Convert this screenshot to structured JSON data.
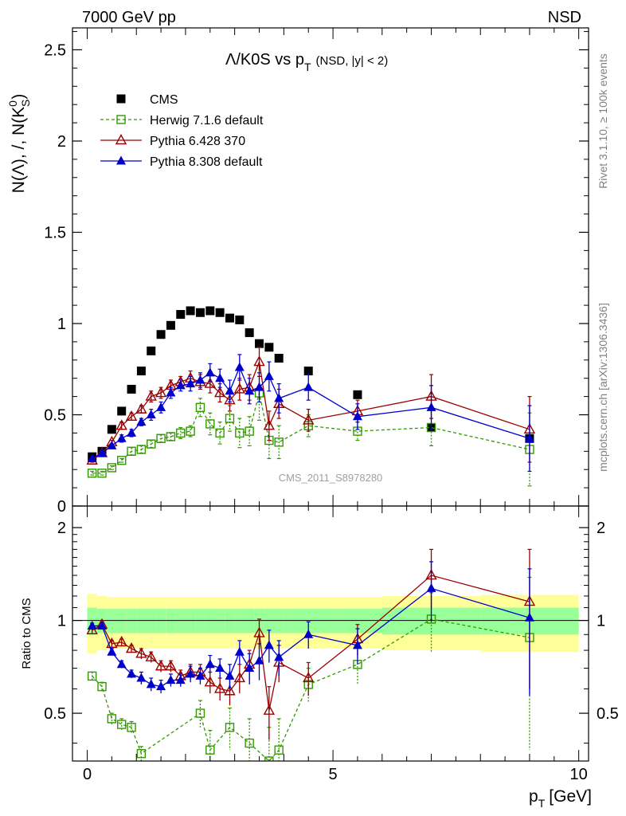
{
  "header": {
    "left": "7000 GeV pp",
    "right": "NSD"
  },
  "side_text": {
    "rivet": "Rivet 3.1.10, ≥ 100k events",
    "mcplots": "mcplots.cern.ch [arXiv:1306.3436]"
  },
  "watermark": "CMS_2011_S8978280",
  "chart_data": [
    {
      "type": "scatter",
      "panel": "main",
      "title": "Λ/K0S vs p_T (NSD, |y| < 2)",
      "title_main": "Λ/K0S vs p",
      "title_sub": "T",
      "title_tail": "(NSD, |y| < 2)",
      "ylabel": "N(Λ), /, N(K_S^0)",
      "xlim": [
        -0.3,
        10.2
      ],
      "ylim": [
        0,
        2.62
      ],
      "y_ticks": [
        0,
        0.5,
        1,
        1.5,
        2,
        2.5
      ],
      "y_tick_labels": [
        "0",
        "0.5",
        "1",
        "1.5",
        "2",
        "2.5"
      ],
      "legend_position": "top-left",
      "series": [
        {
          "name": "CMS",
          "style": "filled-square",
          "color": "#000000",
          "x": [
            0.1,
            0.3,
            0.5,
            0.7,
            0.9,
            1.1,
            1.3,
            1.5,
            1.7,
            1.9,
            2.1,
            2.3,
            2.5,
            2.7,
            2.9,
            3.1,
            3.3,
            3.5,
            3.7,
            3.9,
            4.5,
            5.5,
            7.0,
            9.0
          ],
          "y": [
            0.27,
            0.3,
            0.42,
            0.52,
            0.64,
            0.74,
            0.85,
            0.94,
            0.99,
            1.05,
            1.07,
            1.06,
            1.07,
            1.06,
            1.03,
            1.02,
            0.95,
            0.89,
            0.87,
            0.81,
            0.74,
            0.61,
            0.43,
            0.37
          ]
        },
        {
          "name": "Herwig 7.1.6 default",
          "style": "open-square-dashed",
          "color": "#339900",
          "x": [
            0.1,
            0.3,
            0.5,
            0.7,
            0.9,
            1.1,
            1.3,
            1.5,
            1.7,
            1.9,
            2.1,
            2.3,
            2.5,
            2.7,
            2.9,
            3.1,
            3.3,
            3.5,
            3.7,
            3.9,
            4.5,
            5.5,
            7.0,
            9.0
          ],
          "y": [
            0.18,
            0.18,
            0.21,
            0.25,
            0.3,
            0.31,
            0.34,
            0.37,
            0.38,
            0.4,
            0.41,
            0.54,
            0.45,
            0.4,
            0.48,
            0.4,
            0.41,
            0.62,
            0.36,
            0.35,
            0.44,
            0.41,
            0.43,
            0.31
          ],
          "err": [
            0.01,
            0.01,
            0.01,
            0.01,
            0.02,
            0.02,
            0.02,
            0.02,
            0.02,
            0.03,
            0.03,
            0.05,
            0.06,
            0.06,
            0.07,
            0.08,
            0.08,
            0.15,
            0.1,
            0.09,
            0.06,
            0.05,
            0.1,
            0.2
          ]
        },
        {
          "name": "Pythia 6.428 370",
          "style": "open-triangle",
          "color": "#990000",
          "x": [
            0.1,
            0.3,
            0.5,
            0.7,
            0.9,
            1.1,
            1.3,
            1.5,
            1.7,
            1.9,
            2.1,
            2.3,
            2.5,
            2.7,
            2.9,
            3.1,
            3.3,
            3.5,
            3.7,
            3.9,
            4.5,
            5.5,
            7.0,
            9.0
          ],
          "y": [
            0.25,
            0.29,
            0.35,
            0.44,
            0.49,
            0.53,
            0.6,
            0.62,
            0.66,
            0.68,
            0.7,
            0.68,
            0.67,
            0.62,
            0.58,
            0.64,
            0.65,
            0.79,
            0.44,
            0.56,
            0.47,
            0.52,
            0.6,
            0.42
          ],
          "err": [
            0.01,
            0.01,
            0.01,
            0.02,
            0.02,
            0.02,
            0.03,
            0.03,
            0.03,
            0.03,
            0.04,
            0.04,
            0.05,
            0.05,
            0.06,
            0.06,
            0.07,
            0.08,
            0.08,
            0.08,
            0.06,
            0.06,
            0.12,
            0.18
          ]
        },
        {
          "name": "Pythia 8.308 default",
          "style": "filled-triangle",
          "color": "#0000cc",
          "x": [
            0.1,
            0.3,
            0.5,
            0.7,
            0.9,
            1.1,
            1.3,
            1.5,
            1.7,
            1.9,
            2.1,
            2.3,
            2.5,
            2.7,
            2.9,
            3.1,
            3.3,
            3.5,
            3.7,
            3.9,
            4.5,
            5.5,
            7.0,
            9.0
          ],
          "y": [
            0.26,
            0.29,
            0.33,
            0.37,
            0.4,
            0.46,
            0.5,
            0.54,
            0.62,
            0.66,
            0.67,
            0.69,
            0.73,
            0.7,
            0.63,
            0.76,
            0.63,
            0.65,
            0.71,
            0.59,
            0.65,
            0.49,
            0.54,
            0.37
          ],
          "err": [
            0.01,
            0.01,
            0.01,
            0.02,
            0.02,
            0.02,
            0.03,
            0.03,
            0.03,
            0.03,
            0.04,
            0.04,
            0.05,
            0.05,
            0.06,
            0.07,
            0.07,
            0.08,
            0.08,
            0.08,
            0.07,
            0.07,
            0.12,
            0.18
          ]
        }
      ]
    },
    {
      "type": "line",
      "panel": "ratio",
      "ylabel": "Ratio to CMS",
      "xlabel": "p_T [GeV]",
      "xlabel_main": "p",
      "xlabel_sub": "T",
      "xlabel_tail": "[GeV]",
      "xlim": [
        -0.3,
        10.2
      ],
      "ylim": [
        0.35,
        2.35
      ],
      "y_scale": "log",
      "y_ticks": [
        0.5,
        1,
        2
      ],
      "y_tick_labels": [
        "0.5",
        "1",
        "2"
      ],
      "x_ticks": [
        0,
        5,
        10
      ],
      "x_tick_labels": [
        "0",
        "5",
        "10"
      ],
      "reference_line": 1,
      "band_edges": [
        0.0,
        0.2,
        0.4,
        0.6,
        0.8,
        1.0,
        1.2,
        1.4,
        1.6,
        1.8,
        2.0,
        2.2,
        2.4,
        2.6,
        2.8,
        3.0,
        3.2,
        3.4,
        3.6,
        3.8,
        4.0,
        5.0,
        6.0,
        8.0,
        10.0
      ],
      "band_stat": [
        0.1,
        0.09,
        0.09,
        0.09,
        0.09,
        0.09,
        0.09,
        0.09,
        0.09,
        0.09,
        0.09,
        0.09,
        0.09,
        0.09,
        0.09,
        0.09,
        0.09,
        0.09,
        0.09,
        0.09,
        0.09,
        0.09,
        0.1,
        0.1,
        0.12
      ],
      "band_total": [
        0.22,
        0.2,
        0.19,
        0.19,
        0.19,
        0.19,
        0.19,
        0.19,
        0.19,
        0.19,
        0.19,
        0.19,
        0.19,
        0.19,
        0.19,
        0.19,
        0.19,
        0.19,
        0.19,
        0.19,
        0.19,
        0.19,
        0.2,
        0.21,
        0.24
      ],
      "band_colors": {
        "stat": "#99ff99",
        "total": "#ffff99"
      },
      "series": [
        {
          "name": "Herwig 7.1.6 default",
          "color": "#339900",
          "x": [
            0.1,
            0.3,
            0.5,
            0.7,
            0.9,
            1.1,
            2.3,
            2.5,
            2.9,
            3.3,
            3.7,
            3.9,
            4.5,
            5.5,
            7.0,
            9.0
          ],
          "y": [
            0.66,
            0.61,
            0.48,
            0.46,
            0.45,
            0.37,
            0.5,
            0.38,
            0.45,
            0.4,
            0.35,
            0.38,
            0.62,
            0.72,
            1.01,
            0.88
          ],
          "err": [
            0.02,
            0.02,
            0.02,
            0.02,
            0.02,
            0.02,
            0.05,
            0.06,
            0.07,
            0.08,
            0.1,
            0.1,
            0.08,
            0.1,
            0.22,
            0.5
          ]
        },
        {
          "name": "Pythia 6.428 370",
          "color": "#990000",
          "x": [
            0.1,
            0.3,
            0.5,
            0.7,
            0.9,
            1.1,
            1.3,
            1.5,
            1.7,
            1.9,
            2.1,
            2.3,
            2.5,
            2.7,
            2.9,
            3.1,
            3.3,
            3.5,
            3.7,
            3.9,
            4.5,
            5.5,
            7.0,
            9.0
          ],
          "y": [
            0.93,
            0.97,
            0.84,
            0.85,
            0.81,
            0.78,
            0.76,
            0.71,
            0.71,
            0.66,
            0.68,
            0.68,
            0.63,
            0.6,
            0.59,
            0.65,
            0.72,
            0.91,
            0.51,
            0.73,
            0.65,
            0.87,
            1.4,
            1.15
          ],
          "err": [
            0.02,
            0.02,
            0.02,
            0.02,
            0.02,
            0.03,
            0.03,
            0.03,
            0.03,
            0.03,
            0.04,
            0.04,
            0.05,
            0.05,
            0.06,
            0.07,
            0.08,
            0.1,
            0.1,
            0.1,
            0.08,
            0.1,
            0.3,
            0.55
          ]
        },
        {
          "name": "Pythia 8.308 default",
          "color": "#0000cc",
          "x": [
            0.1,
            0.3,
            0.5,
            0.7,
            0.9,
            1.1,
            1.3,
            1.5,
            1.7,
            1.9,
            2.1,
            2.3,
            2.5,
            2.7,
            2.9,
            3.1,
            3.3,
            3.5,
            3.7,
            3.9,
            4.5,
            5.5,
            7.0,
            9.0
          ],
          "y": [
            0.96,
            0.96,
            0.79,
            0.72,
            0.67,
            0.65,
            0.62,
            0.61,
            0.64,
            0.64,
            0.67,
            0.66,
            0.72,
            0.7,
            0.66,
            0.79,
            0.7,
            0.74,
            0.83,
            0.76,
            0.9,
            0.83,
            1.27,
            1.02
          ],
          "err": [
            0.02,
            0.02,
            0.02,
            0.02,
            0.02,
            0.03,
            0.03,
            0.03,
            0.03,
            0.03,
            0.04,
            0.04,
            0.05,
            0.05,
            0.06,
            0.07,
            0.08,
            0.1,
            0.1,
            0.1,
            0.09,
            0.11,
            0.28,
            0.45
          ]
        }
      ]
    }
  ]
}
